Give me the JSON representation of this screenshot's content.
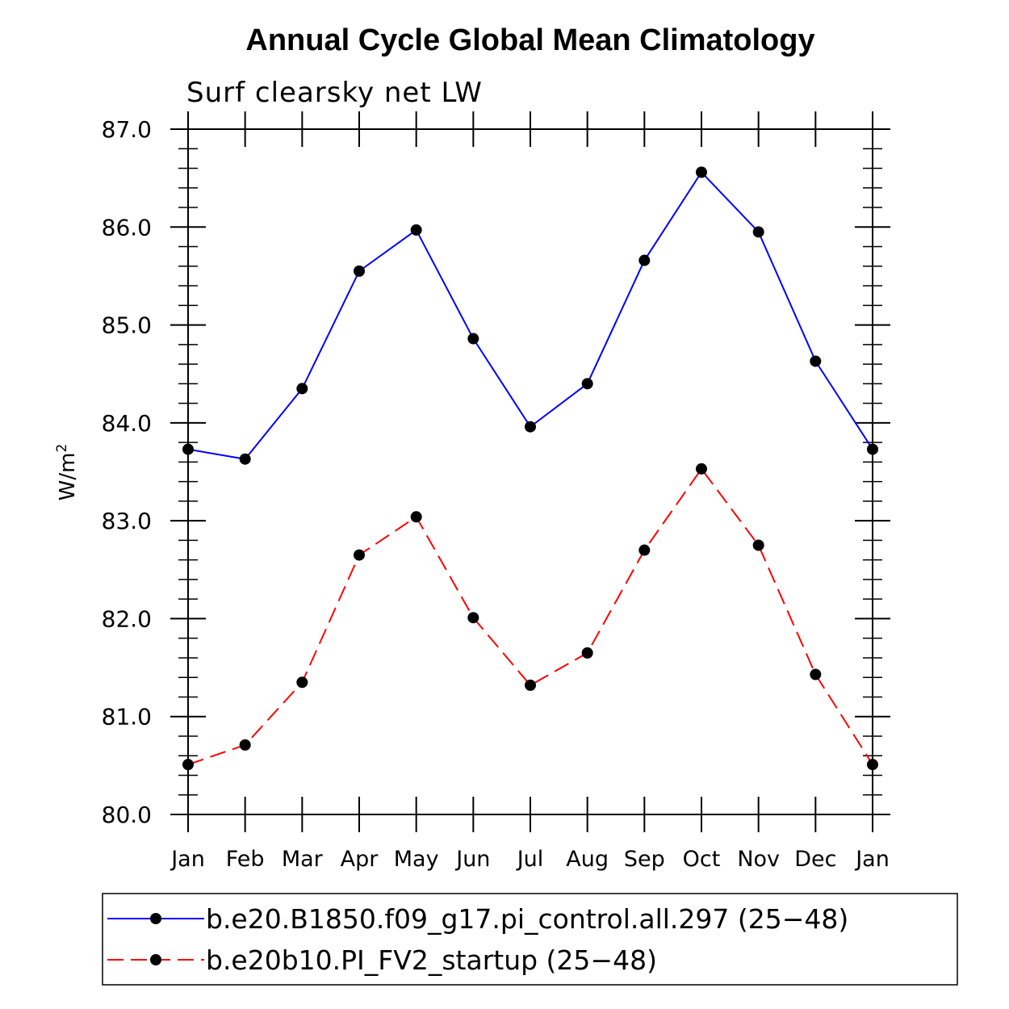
{
  "chart_data": {
    "type": "line",
    "title": "Annual Cycle Global Mean Climatology",
    "subtitle": "Surf clearsky net LW",
    "ylabel": "W/m",
    "ylabel_superscript": "2",
    "xlabel": "",
    "categories": [
      "Jan",
      "Feb",
      "Mar",
      "Apr",
      "May",
      "Jun",
      "Jul",
      "Aug",
      "Sep",
      "Oct",
      "Nov",
      "Dec",
      "Jan"
    ],
    "ylim": [
      80.0,
      87.0
    ],
    "yticks": [
      "80.0",
      "81.0",
      "82.0",
      "83.0",
      "84.0",
      "85.0",
      "86.0",
      "87.0"
    ],
    "grid": false,
    "legend_position": "bottom",
    "series": [
      {
        "name": "b.e20.B1850.f09_g17.pi_control.all.297 (25−48)",
        "color": "#0000ff",
        "dash": "solid",
        "values": [
          83.73,
          83.63,
          84.35,
          85.55,
          85.97,
          84.86,
          83.96,
          84.4,
          85.66,
          86.56,
          85.95,
          84.63,
          83.73
        ]
      },
      {
        "name": "b.e20b10.PI_FV2_startup (25−48)",
        "color": "#ff0000",
        "dash": "dashed",
        "values": [
          80.51,
          80.71,
          81.35,
          82.65,
          83.04,
          82.01,
          81.32,
          81.65,
          82.7,
          83.53,
          82.75,
          81.43,
          80.51
        ]
      }
    ]
  }
}
